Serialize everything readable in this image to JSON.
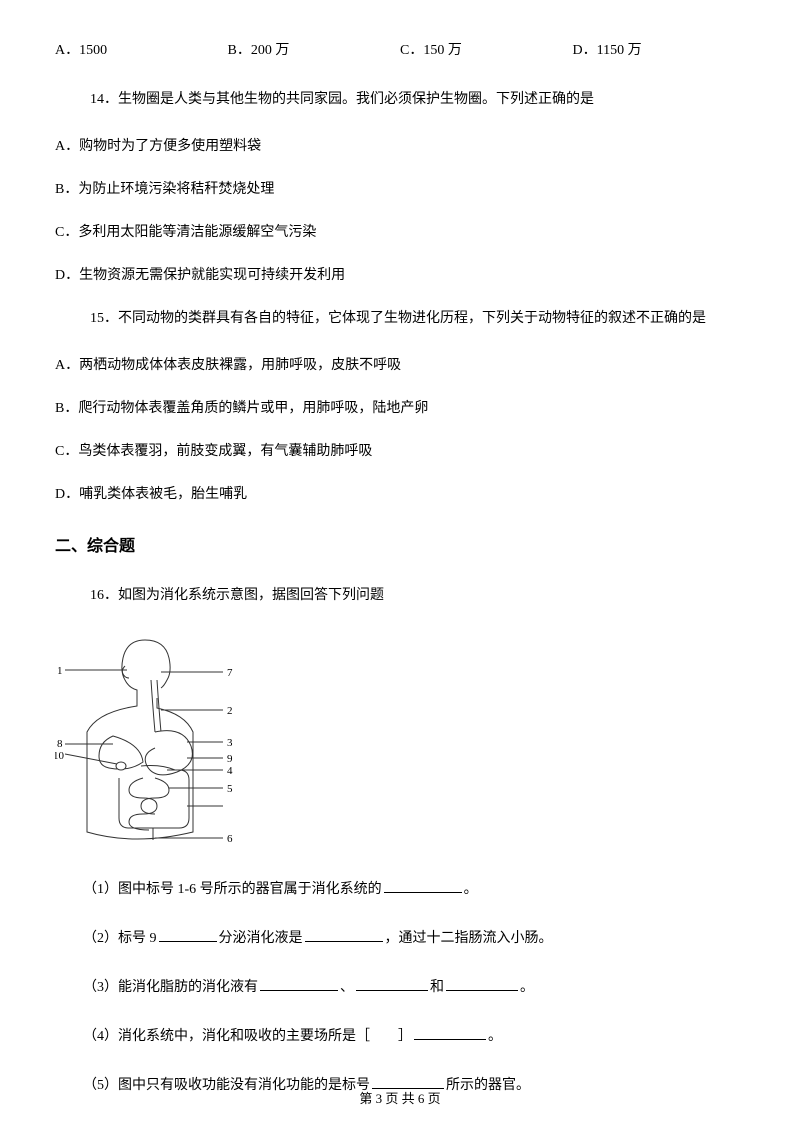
{
  "q13_options": {
    "a": "A．1500",
    "b": "B．200 万",
    "c": "C．150 万",
    "d": "D．1150 万"
  },
  "q14": {
    "stem": "14．生物圈是人类与其他生物的共同家园。我们必须保护生物圈。下列述正确的是",
    "a": "A．购物时为了方便多使用塑料袋",
    "b": "B．为防止环境污染将秸秆焚烧处理",
    "c": "C．多利用太阳能等清洁能源缓解空气污染",
    "d": "D．生物资源无需保护就能实现可持续开发利用"
  },
  "q15": {
    "stem": "15．不同动物的类群具有各自的特征，它体现了生物进化历程，下列关于动物特征的叙述不正确的是",
    "a": "A．两栖动物成体体表皮肤裸露，用肺呼吸，皮肤不呼吸",
    "b": "B．爬行动物体表覆盖角质的鳞片或甲，用肺呼吸，陆地产卵",
    "c": "C．鸟类体表覆羽，前肢变成翼，有气囊辅助肺呼吸",
    "d": "D．哺乳类体表被毛，胎生哺乳"
  },
  "section2": "二、综合题",
  "q16": {
    "stem": "16．如图为消化系统示意图，据图回答下列问题",
    "sub1_pre": "（1）图中标号 1-6 号所示的器官属于消化系统的",
    "sub1_post": "。",
    "sub2_pre": "（2）标号 9",
    "sub2_mid1": "分泌消化液是",
    "sub2_post": "，通过十二指肠流入小肠。",
    "sub3_pre": "（3）能消化脂肪的消化液有",
    "sub3_sep1": "、",
    "sub3_sep2": "和",
    "sub3_post": "。",
    "sub4_pre": "（4）消化系统中，消化和吸收的主要场所是［　　］",
    "sub4_post": "。",
    "sub5_pre": "（5）图中只有吸收功能没有消化功能的是标号",
    "sub5_post": "所示的器官。"
  },
  "diagram_labels": {
    "l1": "1",
    "l2": "2",
    "l3": "3",
    "l4": "4",
    "l5": "5",
    "l6": "6",
    "l7": "7",
    "l8": "8",
    "l9": "9",
    "l10": "10"
  },
  "blank_widths": {
    "w60": 72,
    "w50": 58,
    "w70": 78
  },
  "footer": "第 3 页 共 6 页",
  "colors": {
    "text": "#000000",
    "bg": "#ffffff",
    "stroke": "#333333"
  }
}
